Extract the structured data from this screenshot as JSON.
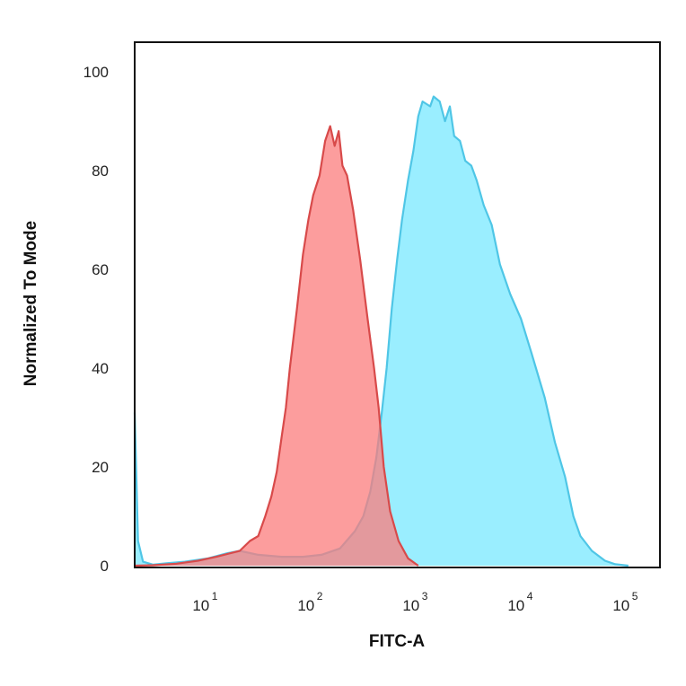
{
  "chart_data": {
    "type": "area",
    "title": "",
    "xlabel": "FITC-A",
    "ylabel": "Normalized To Mode",
    "x_scale": "log",
    "xlim": [
      2,
      200000
    ],
    "ylim": [
      0,
      105
    ],
    "grid": false,
    "legend": "none",
    "x_ticks": [
      {
        "value": 10,
        "base": "10",
        "exp": "1"
      },
      {
        "value": 100,
        "base": "10",
        "exp": "2"
      },
      {
        "value": 1000,
        "base": "10",
        "exp": "3"
      },
      {
        "value": 10000,
        "base": "10",
        "exp": "4"
      },
      {
        "value": 100000,
        "base": "10",
        "exp": "5"
      }
    ],
    "y_ticks": [
      0,
      20,
      40,
      60,
      80,
      100
    ],
    "series": [
      {
        "color": "#4fc6e6",
        "fill": "#9aeeff",
        "points": [
          [
            2,
            31
          ],
          [
            2.15,
            5
          ],
          [
            2.4,
            0.8
          ],
          [
            3,
            0.2
          ],
          [
            4,
            0.5
          ],
          [
            6,
            0.8
          ],
          [
            10,
            1.5
          ],
          [
            15,
            2.5
          ],
          [
            20,
            3
          ],
          [
            30,
            2.2
          ],
          [
            50,
            1.8
          ],
          [
            80,
            1.8
          ],
          [
            120,
            2.2
          ],
          [
            180,
            3.5
          ],
          [
            250,
            7
          ],
          [
            300,
            10
          ],
          [
            350,
            15
          ],
          [
            400,
            22
          ],
          [
            450,
            31
          ],
          [
            500,
            40
          ],
          [
            560,
            52
          ],
          [
            630,
            62
          ],
          [
            700,
            70
          ],
          [
            800,
            78
          ],
          [
            900,
            84
          ],
          [
            1000,
            91
          ],
          [
            1100,
            94
          ],
          [
            1300,
            93
          ],
          [
            1400,
            95
          ],
          [
            1600,
            94
          ],
          [
            1800,
            90
          ],
          [
            2000,
            93
          ],
          [
            2200,
            87
          ],
          [
            2500,
            86
          ],
          [
            2800,
            82
          ],
          [
            3200,
            81
          ],
          [
            3600,
            78
          ],
          [
            4200,
            73
          ],
          [
            5000,
            69
          ],
          [
            6000,
            61
          ],
          [
            7500,
            55
          ],
          [
            9500,
            50
          ],
          [
            12000,
            43
          ],
          [
            16000,
            34
          ],
          [
            20000,
            25
          ],
          [
            25000,
            18
          ],
          [
            30000,
            10
          ],
          [
            35000,
            6
          ],
          [
            45000,
            3
          ],
          [
            60000,
            1
          ],
          [
            75000,
            0.3
          ],
          [
            100000,
            0
          ]
        ]
      },
      {
        "color": "#d84a4a",
        "fill": "#fb7c7c",
        "opacity": 0.75,
        "points": [
          [
            2,
            0
          ],
          [
            3,
            0.1
          ],
          [
            5,
            0.4
          ],
          [
            8,
            1
          ],
          [
            12,
            1.8
          ],
          [
            16,
            2.5
          ],
          [
            20,
            3
          ],
          [
            25,
            5
          ],
          [
            30,
            6
          ],
          [
            35,
            10
          ],
          [
            40,
            14
          ],
          [
            45,
            19
          ],
          [
            50,
            26
          ],
          [
            55,
            32
          ],
          [
            60,
            40
          ],
          [
            70,
            52
          ],
          [
            80,
            63
          ],
          [
            90,
            70
          ],
          [
            100,
            75
          ],
          [
            115,
            79
          ],
          [
            130,
            86
          ],
          [
            145,
            89
          ],
          [
            160,
            85
          ],
          [
            175,
            88
          ],
          [
            190,
            81
          ],
          [
            210,
            79
          ],
          [
            240,
            72
          ],
          [
            280,
            62
          ],
          [
            330,
            50
          ],
          [
            380,
            40
          ],
          [
            420,
            32
          ],
          [
            470,
            20
          ],
          [
            540,
            11
          ],
          [
            650,
            5
          ],
          [
            800,
            1.5
          ],
          [
            1000,
            0
          ]
        ]
      }
    ]
  }
}
